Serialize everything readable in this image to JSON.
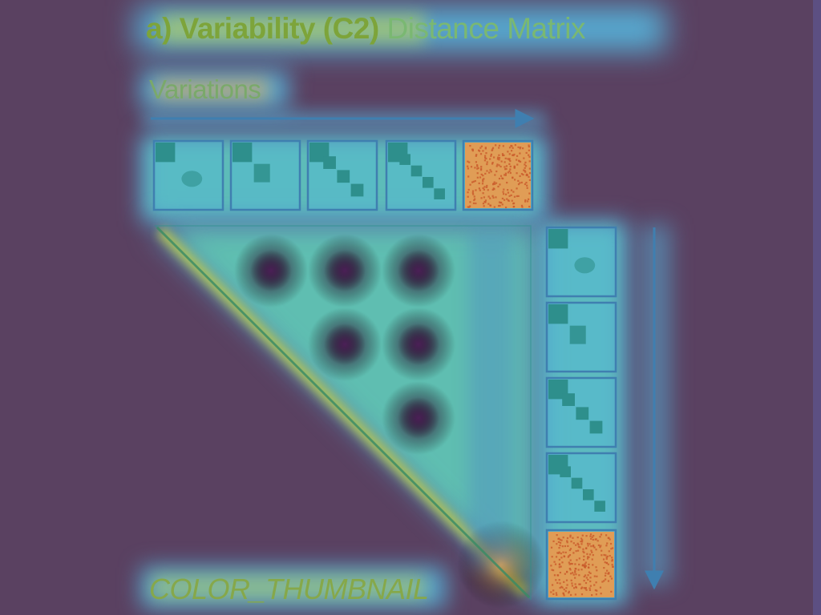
{
  "title": {
    "bold": "a) Variability (C2)",
    "light": " Distance Matrix"
  },
  "axis_label": "Variations",
  "footer_label": "COLOR_THUMBNAIL",
  "thumbnails": [
    {
      "pattern": "corner-dot"
    },
    {
      "pattern": "two-squares"
    },
    {
      "pattern": "diagonal-3"
    },
    {
      "pattern": "diagonal-4"
    },
    {
      "pattern": "noise"
    }
  ],
  "matrix": {
    "size": 5,
    "dark_cells": [
      [
        0,
        1
      ],
      [
        0,
        2
      ],
      [
        0,
        3
      ],
      [
        1,
        2
      ],
      [
        1,
        3
      ],
      [
        2,
        3
      ]
    ]
  },
  "colors": {
    "background": "#5a4161",
    "line": "#3f7fb0",
    "thumb_fill": "#4fb9de",
    "thumb_dark": "#2e8f8c",
    "noise_base": "#f09a4a",
    "noise_dot": "#c95a2a",
    "heat_yellow": "#c8d84a",
    "heat_green": "#66c890",
    "heat_cyan": "#57b8e0",
    "heat_dark": "#5d2a6a"
  }
}
